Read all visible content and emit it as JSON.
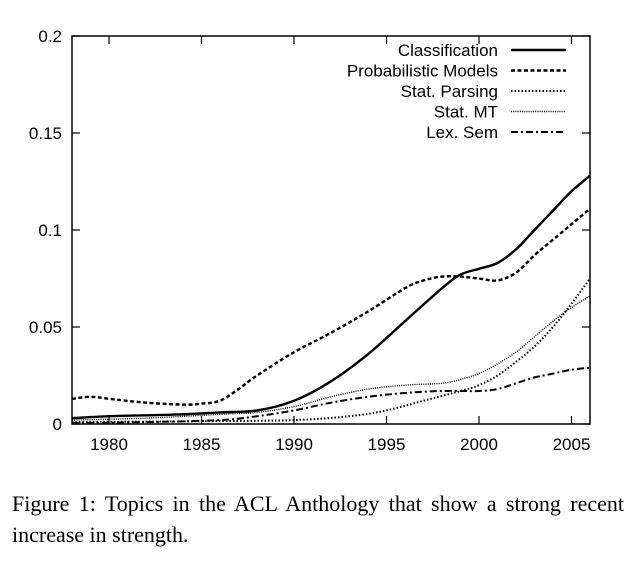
{
  "chart_data": {
    "type": "line",
    "title": "",
    "xlabel": "",
    "ylabel": "",
    "xlim": [
      1978,
      2006
    ],
    "ylim": [
      0,
      0.2
    ],
    "grid": false,
    "legend_position": "top-right",
    "x_ticks": [
      1980,
      1985,
      1990,
      1995,
      2000,
      2005
    ],
    "x_tick_labels": [
      "1980",
      "1985",
      "1990",
      "1995",
      "2000",
      "2005"
    ],
    "y_ticks": [
      0,
      0.05,
      0.1,
      0.15,
      0.2
    ],
    "y_tick_labels": [
      "0",
      "0.05",
      "0.1",
      "0.15",
      "0.2"
    ],
    "series": [
      {
        "name": "Classification",
        "dash": "solid",
        "x": [
          1978,
          1980,
          1982,
          1984,
          1986,
          1988,
          1990,
          1992,
          1994,
          1996,
          1998,
          1999,
          2000,
          2001,
          2002,
          2003,
          2004,
          2005,
          2006
        ],
        "y": [
          0.003,
          0.004,
          0.0045,
          0.005,
          0.006,
          0.007,
          0.012,
          0.022,
          0.036,
          0.053,
          0.07,
          0.077,
          0.08,
          0.083,
          0.09,
          0.1,
          0.11,
          0.12,
          0.128
        ]
      },
      {
        "name": "Probabilistic Models",
        "dash": "dashed",
        "x": [
          1978,
          1979,
          1980,
          1982,
          1984,
          1985,
          1986,
          1987,
          1988,
          1990,
          1992,
          1994,
          1996,
          1997,
          1998,
          1999,
          2000,
          2001,
          2002,
          2003,
          2004,
          2005,
          2006
        ],
        "y": [
          0.013,
          0.014,
          0.013,
          0.011,
          0.01,
          0.0105,
          0.012,
          0.018,
          0.025,
          0.037,
          0.047,
          0.058,
          0.07,
          0.074,
          0.076,
          0.076,
          0.075,
          0.074,
          0.078,
          0.087,
          0.095,
          0.103,
          0.111
        ]
      },
      {
        "name": "Stat. Parsing",
        "dash": "dotted",
        "x": [
          1978,
          1982,
          1986,
          1990,
          1993,
          1995,
          1997,
          1999,
          2000,
          2001,
          2002,
          2003,
          2004,
          2005,
          2006
        ],
        "y": [
          0.001,
          0.0012,
          0.0015,
          0.002,
          0.004,
          0.007,
          0.012,
          0.017,
          0.02,
          0.025,
          0.032,
          0.04,
          0.05,
          0.062,
          0.075
        ]
      },
      {
        "name": "Stat. MT",
        "dash": "thin-dotted",
        "x": [
          1978,
          1982,
          1986,
          1988,
          1990,
          1992,
          1994,
          1996,
          1998,
          1999,
          2000,
          2001,
          2002,
          2003,
          2004,
          2005,
          2006
        ],
        "y": [
          0.002,
          0.003,
          0.005,
          0.006,
          0.009,
          0.014,
          0.018,
          0.02,
          0.021,
          0.023,
          0.026,
          0.031,
          0.037,
          0.045,
          0.053,
          0.06,
          0.066
        ]
      },
      {
        "name": "Lex. Sem",
        "dash": "dash-dot",
        "x": [
          1978,
          1982,
          1986,
          1988,
          1990,
          1992,
          1994,
          1996,
          1998,
          2000,
          2001,
          2002,
          2003,
          2004,
          2005,
          2006
        ],
        "y": [
          0.0005,
          0.001,
          0.002,
          0.004,
          0.007,
          0.011,
          0.014,
          0.016,
          0.017,
          0.017,
          0.018,
          0.021,
          0.024,
          0.026,
          0.028,
          0.029
        ]
      }
    ]
  },
  "caption": "Figure 1: Topics in the ACL Anthology that show a strong recent increase in strength."
}
